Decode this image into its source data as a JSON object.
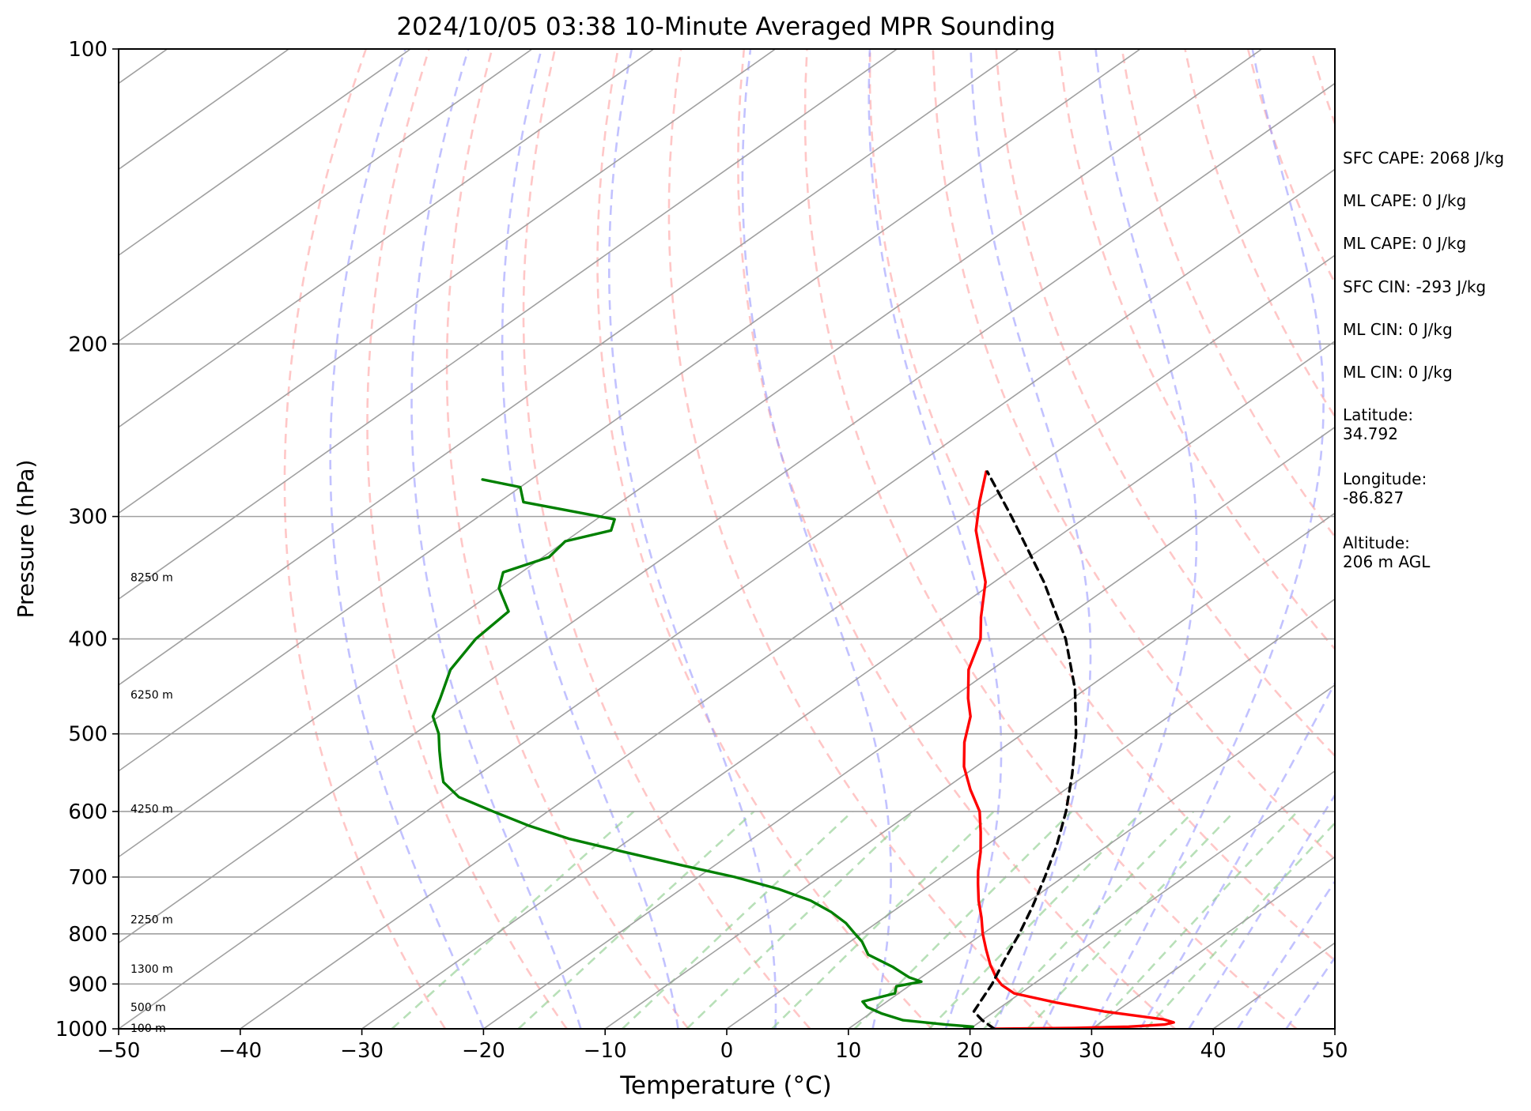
{
  "chart_data": {
    "type": "line",
    "subtype": "skew-T log-P diagram",
    "title": "2024/10/05 03:38 10-Minute Averaged MPR Sounding",
    "xlabel": "Temperature (°C)",
    "ylabel": "Pressure (hPa)",
    "xlim": [
      -50,
      50
    ],
    "ylim_pressure": [
      1000,
      100
    ],
    "y_scale": "log",
    "x_ticks": [
      "−50",
      "−40",
      "−30",
      "−20",
      "−10",
      "0",
      "10",
      "20",
      "30",
      "40",
      "50"
    ],
    "y_ticks": [
      "100",
      "200",
      "300",
      "400",
      "500",
      "600",
      "700",
      "800",
      "900",
      "1000"
    ],
    "grid": "pressure lines only",
    "height_labels": [
      {
        "text": "100 m",
        "pressure": 998
      },
      {
        "text": "500 m",
        "pressure": 950
      },
      {
        "text": "1300 m",
        "pressure": 868
      },
      {
        "text": "2250 m",
        "pressure": 773
      },
      {
        "text": "4250 m",
        "pressure": 596
      },
      {
        "text": "6250 m",
        "pressure": 456
      },
      {
        "text": "8250 m",
        "pressure": 346
      }
    ],
    "series": [
      {
        "color": "#ff0000",
        "role": "temperature",
        "points": [
          [
            1000,
            22.0
          ],
          [
            998,
            28.5
          ],
          [
            995,
            32.8
          ],
          [
            990,
            35.5
          ],
          [
            985,
            36.0
          ],
          [
            978,
            34.8
          ],
          [
            960,
            29.0
          ],
          [
            940,
            24.0
          ],
          [
            920,
            19.5
          ],
          [
            902,
            17.5
          ],
          [
            888,
            16.3
          ],
          [
            860,
            14.2
          ],
          [
            830,
            12.1
          ],
          [
            800,
            10.0
          ],
          [
            770,
            8.0
          ],
          [
            740,
            5.8
          ],
          [
            710,
            3.7
          ],
          [
            690,
            2.3
          ],
          [
            660,
            0.3
          ],
          [
            630,
            -2.0
          ],
          [
            600,
            -4.5
          ],
          [
            570,
            -7.8
          ],
          [
            540,
            -11.0
          ],
          [
            510,
            -13.8
          ],
          [
            480,
            -16.3
          ],
          [
            460,
            -18.6
          ],
          [
            430,
            -21.9
          ],
          [
            400,
            -24.5
          ],
          [
            380,
            -27.0
          ],
          [
            350,
            -30.7
          ],
          [
            330,
            -34.0
          ],
          [
            310,
            -37.5
          ],
          [
            290,
            -40.5
          ],
          [
            270,
            -43.5
          ]
        ]
      },
      {
        "color": "#008000",
        "role": "dewpoint",
        "points": [
          [
            1000,
            19.5
          ],
          [
            995,
            20.0
          ],
          [
            990,
            17.5
          ],
          [
            980,
            13.5
          ],
          [
            965,
            11.0
          ],
          [
            950,
            9.0
          ],
          [
            938,
            8.0
          ],
          [
            920,
            9.7
          ],
          [
            905,
            9.0
          ],
          [
            895,
            10.5
          ],
          [
            886,
            9.0
          ],
          [
            865,
            6.5
          ],
          [
            840,
            3.0
          ],
          [
            815,
            1.0
          ],
          [
            800,
            -0.5
          ],
          [
            780,
            -2.5
          ],
          [
            760,
            -5.0
          ],
          [
            740,
            -8.0
          ],
          [
            720,
            -12.0
          ],
          [
            700,
            -17.0
          ],
          [
            680,
            -23.0
          ],
          [
            660,
            -29.0
          ],
          [
            640,
            -35.0
          ],
          [
            620,
            -40.0
          ],
          [
            600,
            -44.5
          ],
          [
            580,
            -49.0
          ],
          [
            560,
            -52.0
          ],
          [
            540,
            -54.0
          ],
          [
            520,
            -56.0
          ],
          [
            500,
            -58.0
          ],
          [
            480,
            -60.5
          ],
          [
            460,
            -62.0
          ],
          [
            430,
            -64.5
          ],
          [
            400,
            -66.0
          ],
          [
            375,
            -66.5
          ],
          [
            355,
            -70.0
          ],
          [
            342,
            -71.5
          ],
          [
            330,
            -69.5
          ],
          [
            318,
            -70.0
          ],
          [
            310,
            -67.5
          ],
          [
            302,
            -68.5
          ],
          [
            290,
            -78.0
          ],
          [
            280,
            -80.0
          ],
          [
            275,
            -84.0
          ]
        ]
      },
      {
        "color": "#000000",
        "role": "parcel",
        "dashed": true,
        "points": [
          [
            1000,
            22.0
          ],
          [
            980,
            20.0
          ],
          [
            960,
            18.3
          ],
          [
            900,
            16.6
          ],
          [
            850,
            14.8
          ],
          [
            800,
            13.0
          ],
          [
            750,
            10.9
          ],
          [
            700,
            8.5
          ],
          [
            650,
            5.8
          ],
          [
            600,
            2.6
          ],
          [
            550,
            -1.2
          ],
          [
            500,
            -5.6
          ],
          [
            450,
            -10.9
          ],
          [
            400,
            -17.5
          ],
          [
            350,
            -25.9
          ],
          [
            300,
            -36.2
          ],
          [
            270,
            -43.4
          ]
        ]
      }
    ]
  },
  "sidebar": [
    {
      "text": "SFC CAPE: 2068 J/kg"
    },
    {
      "text": "ML CAPE: 0 J/kg"
    },
    {
      "text": "ML CAPE: 0 J/kg"
    },
    {
      "text": "SFC CIN: -293 J/kg"
    },
    {
      "text": "ML CIN: 0 J/kg"
    },
    {
      "text": "ML CIN: 0 J/kg"
    },
    {
      "text": "Latitude:\n34.792"
    },
    {
      "text": "Longitude:\n-86.827"
    },
    {
      "text": "Altitude:\n206 m AGL"
    }
  ],
  "colors": {
    "isotherm": "#a0a0a0",
    "pressure_grid": "#a0a0a0",
    "dry_adiabat": "#ff9999",
    "moist_adiabat": "#9999ff",
    "mixing_ratio": "#88cc88"
  }
}
